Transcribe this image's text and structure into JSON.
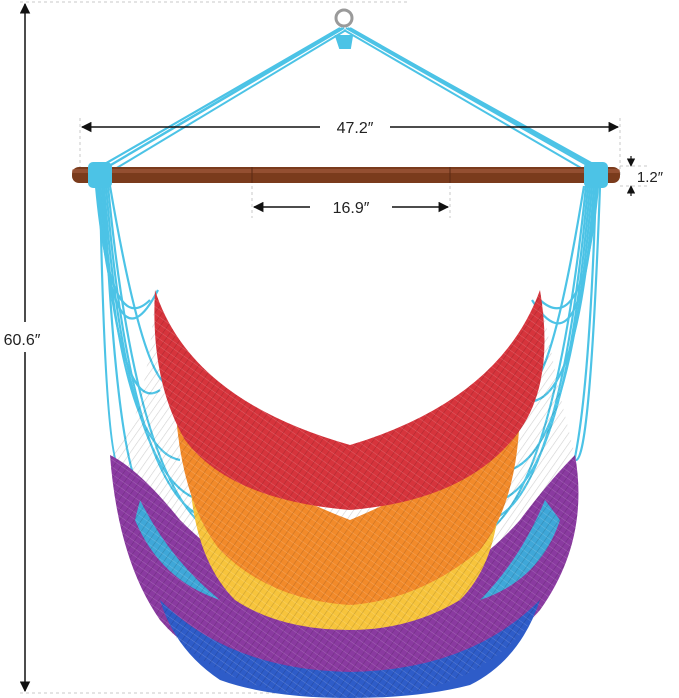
{
  "dimensions": {
    "bar_width": "47.2″",
    "spreader_segment": "16.9″",
    "bar_thickness": "1.2″",
    "total_height": "60.6″"
  },
  "colors": {
    "rope": "#4cc3e6",
    "bar": "#7a3b1c",
    "red": "#d6343c",
    "orange": "#f28a2a",
    "yellow": "#f7c43c",
    "purple": "#8a3aa0",
    "blue": "#2e5cc8",
    "arrow": "#111111",
    "guide": "#c8c8c8"
  }
}
